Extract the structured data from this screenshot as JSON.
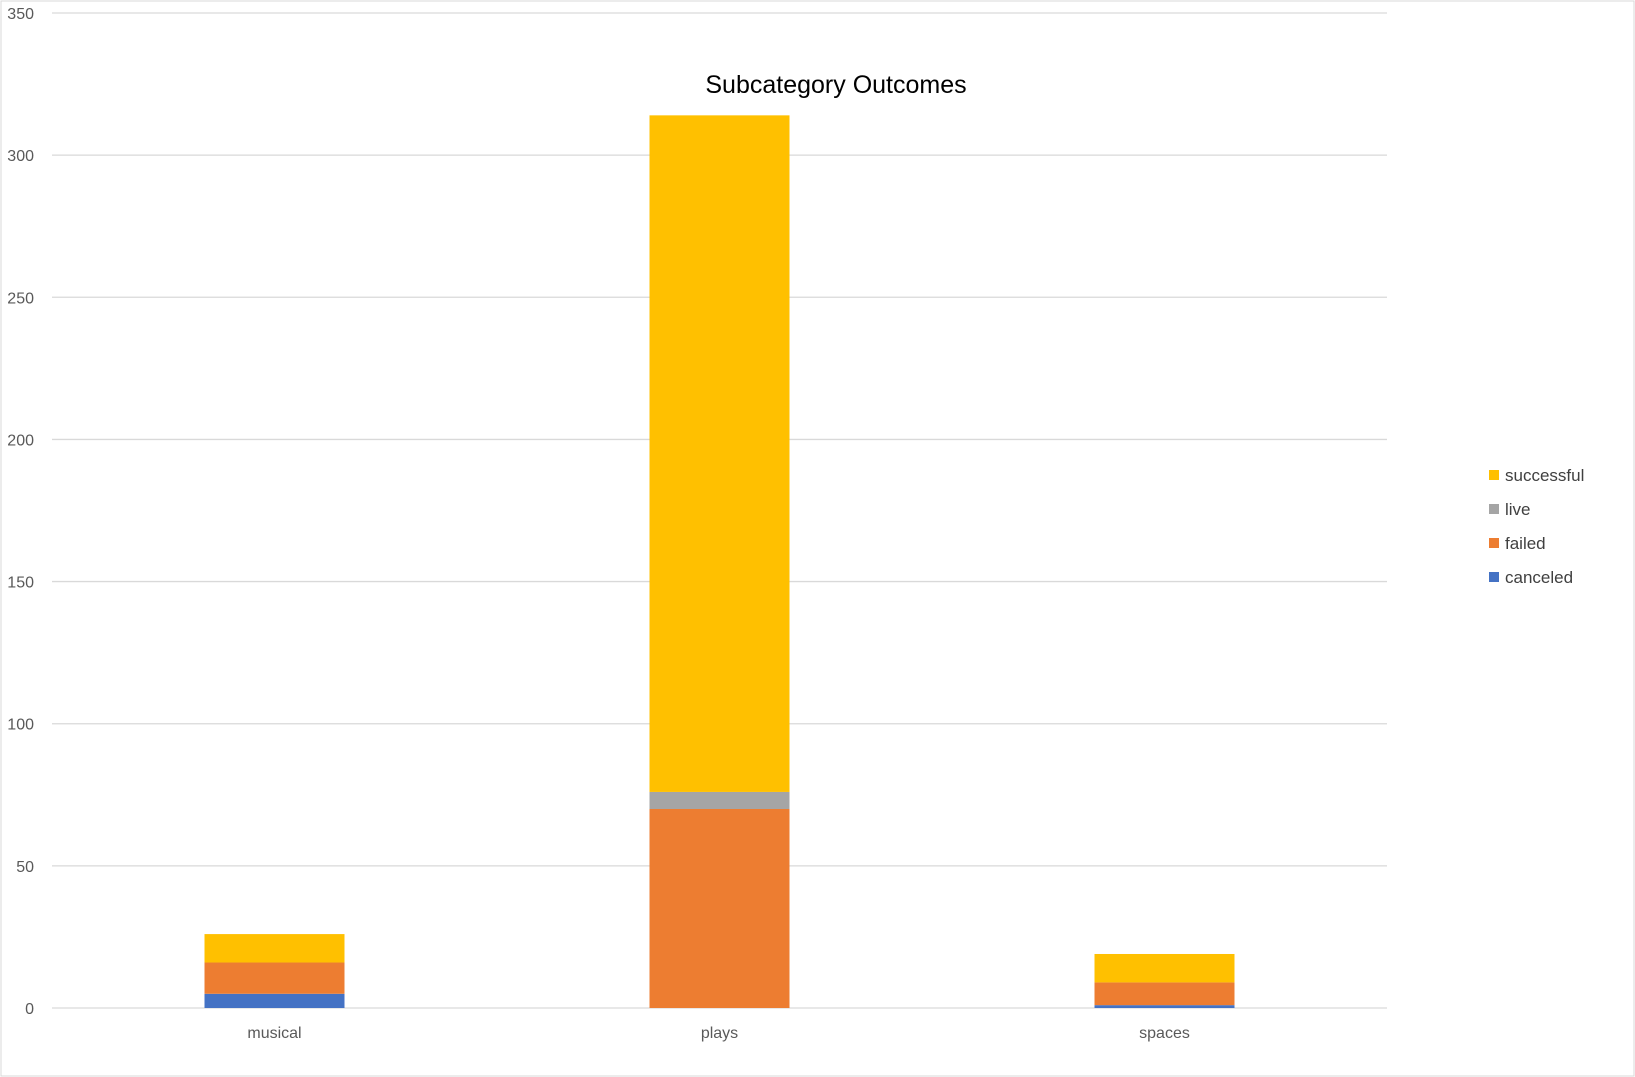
{
  "chart_data": {
    "type": "bar",
    "stacked": true,
    "title": "Subcategory Outcomes",
    "xlabel": "",
    "ylabel": "",
    "categories": [
      "musical",
      "plays",
      "spaces"
    ],
    "ylim": [
      0,
      350
    ],
    "yticks": [
      "0",
      "50",
      "100",
      "150",
      "200",
      "250",
      "300",
      "350"
    ],
    "grid": true,
    "legend_position": "right",
    "series": [
      {
        "name": "canceled",
        "color": "#4472C4",
        "values": [
          5,
          0,
          1
        ]
      },
      {
        "name": "failed",
        "color": "#ED7D31",
        "values": [
          11,
          70,
          8
        ]
      },
      {
        "name": "live",
        "color": "#A5A5A5",
        "values": [
          0,
          6,
          0
        ]
      },
      {
        "name": "successful",
        "color": "#FFC000",
        "values": [
          10,
          238,
          10
        ]
      }
    ],
    "legend_order": [
      "successful",
      "live",
      "failed",
      "canceled"
    ]
  }
}
